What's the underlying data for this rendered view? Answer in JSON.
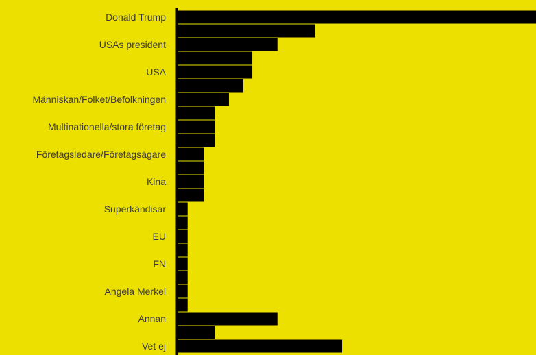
{
  "chart_data": {
    "type": "bar",
    "orientation": "horizontal",
    "title": "",
    "xlabel": "",
    "ylabel": "",
    "grid": false,
    "colors": {
      "background": "#ece000",
      "bar": "#000000",
      "axis": "#000000",
      "label": "#3b3b3b"
    },
    "xlim": [
      0,
      100
    ],
    "categories": [
      "Donald Trump",
      "",
      "USAs president",
      "",
      "USA",
      "",
      "Människan/Folket/Befolkningen",
      "",
      "Multinationella/stora företag",
      "",
      "Företagsledare/Företagsägare",
      "",
      "Kina",
      "",
      "Superkändisar",
      "",
      "EU",
      "",
      "FN",
      "",
      "Angela Merkel",
      "",
      "Annan",
      "",
      "Vet ej"
    ],
    "values": [
      100,
      38.5,
      28,
      21,
      21,
      18.5,
      14.5,
      10.5,
      10.5,
      10.5,
      7.5,
      7.5,
      7.5,
      7.5,
      3,
      3,
      3,
      3,
      3,
      3,
      3,
      3,
      28,
      10.5,
      46
    ]
  }
}
